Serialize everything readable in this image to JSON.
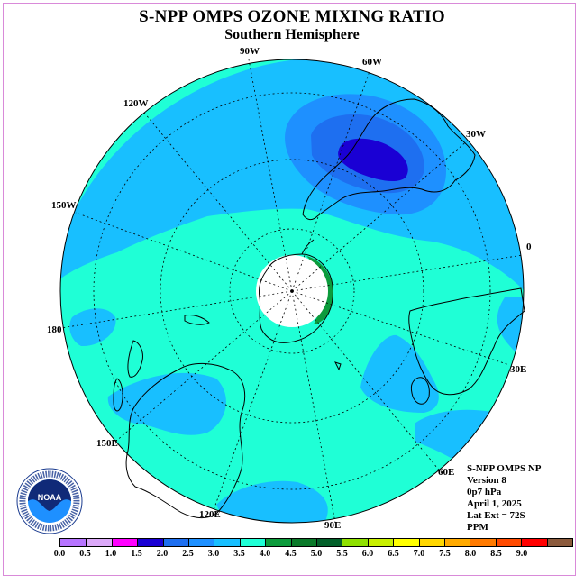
{
  "header": {
    "title": "S-NPP OMPS OZONE MIXING RATIO",
    "subtitle": "Southern Hemisphere"
  },
  "map": {
    "projection": "south polar stereographic",
    "lat_extent": "72S",
    "background_color": "#1fffd6",
    "longitude_labels": [
      "90W",
      "60W",
      "30W",
      "0",
      "30E",
      "60E",
      "90E",
      "120E",
      "150E",
      "180",
      "150W",
      "120W"
    ],
    "features": [
      "Antarctica",
      "South America",
      "Africa",
      "Australia",
      "New Zealand"
    ]
  },
  "info": {
    "lines": [
      "S-NPP OMPS NP",
      "Version 8",
      "0p7 hPa",
      "April 1, 2025",
      "Lat Ext = 72S",
      "PPM"
    ]
  },
  "colorbar": {
    "colors": [
      "#b774ff",
      "#dca9f9",
      "#ff00ff",
      "#1a00d4",
      "#1e6ff0",
      "#1e90ff",
      "#18bfff",
      "#1fffd6",
      "#0c9b3c",
      "#0a7a2a",
      "#02602a",
      "#8ee000",
      "#c8f000",
      "#ffff00",
      "#ffd700",
      "#ffaa00",
      "#ff7a00",
      "#ff4a00",
      "#ff0000",
      "#8b5a3c"
    ],
    "tick_labels": [
      "0.0",
      "0.5",
      "1.0",
      "1.5",
      "2.0",
      "2.5",
      "3.0",
      "3.5",
      "4.0",
      "4.5",
      "5.0",
      "5.5",
      "6.0",
      "6.5",
      "7.0",
      "7.5",
      "8.0",
      "8.5",
      "9.0"
    ],
    "unit": "PPM",
    "range": [
      0.0,
      9.0
    ],
    "step": 0.5
  },
  "logo": {
    "text": "NOAA",
    "ring_text": "NATIONAL OCEANIC AND ATMOSPHERIC ADMINISTRATION · U.S. DEPARTMENT OF COMMERCE"
  }
}
